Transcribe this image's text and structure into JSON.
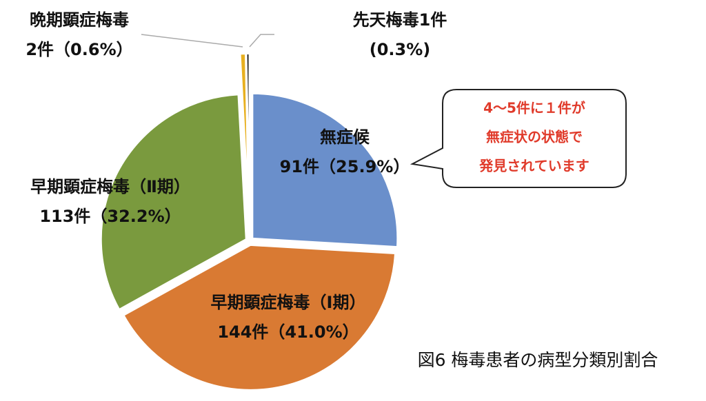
{
  "chart_data": {
    "type": "pie",
    "categories": [
      "無症候",
      "早期顕症梅毒（Ⅰ期）",
      "早期顕症梅毒（Ⅱ期）",
      "晩期顕症梅毒",
      "先天梅毒"
    ],
    "values": [
      91,
      144,
      113,
      2,
      1
    ],
    "label_lines": [
      [
        "無症候",
        "91件（25.9%）"
      ],
      [
        "早期顕症梅毒（Ⅰ期）",
        "144件（41.0%）"
      ],
      [
        "早期顕症梅毒（Ⅱ期）",
        "113件（32.2%）"
      ],
      [
        "晩期顕症梅毒",
        "2件（0.6%）"
      ],
      [
        "先天梅毒1件",
        "(0.3%)"
      ]
    ],
    "colors": [
      "#6a8fcb",
      "#d97a33",
      "#7a9a3e",
      "#e8b020",
      "#000000"
    ]
  },
  "annotation": [
    "4〜5件に１件が",
    "無症状の状態で",
    "発見されています"
  ],
  "caption": "図6  梅毒患者の病型分類別割合"
}
